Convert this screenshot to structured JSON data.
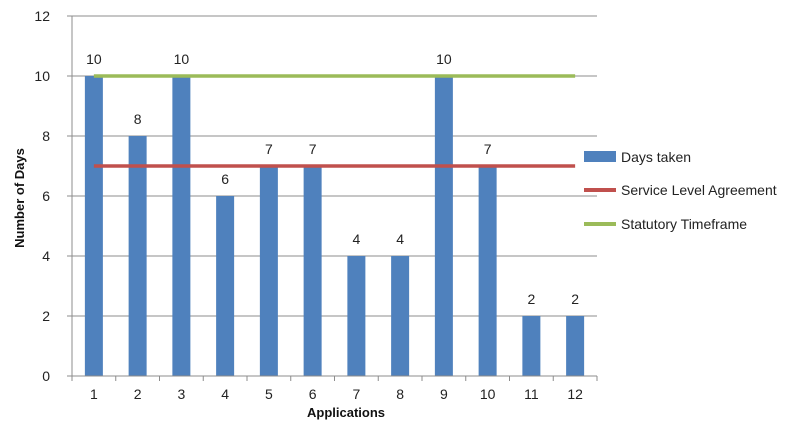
{
  "chart_data": {
    "type": "bar",
    "title": "",
    "xlabel": "Applications",
    "ylabel": "Number of Days",
    "categories": [
      "1",
      "2",
      "3",
      "4",
      "5",
      "6",
      "7",
      "8",
      "9",
      "10",
      "11",
      "12"
    ],
    "ylim": [
      0,
      12
    ],
    "yticks": [
      0,
      2,
      4,
      6,
      8,
      10,
      12
    ],
    "grid": true,
    "legend_position": "right",
    "series": [
      {
        "name": "Days taken",
        "kind": "bar",
        "color": "#4f81bd",
        "values": [
          10,
          8,
          10,
          6,
          7,
          7,
          4,
          4,
          10,
          7,
          2,
          2
        ],
        "data_labels": [
          "10",
          "8",
          "10",
          "6",
          "7",
          "7",
          "4",
          "4",
          "10",
          "7",
          "2",
          "2"
        ]
      },
      {
        "name": "Service Level Agreement",
        "kind": "line",
        "color": "#c0504d",
        "value": 7
      },
      {
        "name": "Statutory Timeframe",
        "kind": "line",
        "color": "#9bbb59",
        "value": 10
      }
    ]
  }
}
